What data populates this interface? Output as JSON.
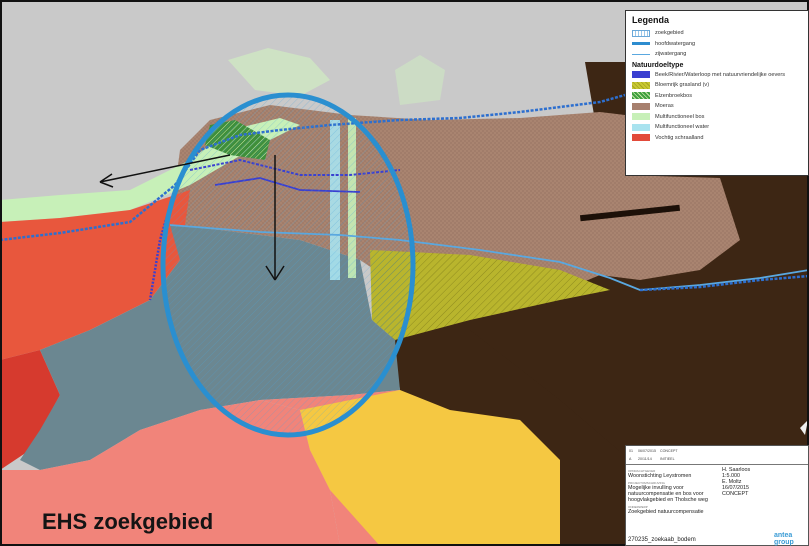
{
  "legend": {
    "title": "Legenda",
    "items": [
      {
        "label": "zoekgebied",
        "color": "#6aa8d8",
        "type": "hatched-box"
      },
      {
        "label": "hoofdwatergang",
        "color": "#2d8ccf",
        "type": "thick-line"
      },
      {
        "label": "zijwatergang",
        "color": "#5aa8e0",
        "type": "thin-line"
      }
    ],
    "section_title": "Natuurdoeltype",
    "types": [
      {
        "label": "Beek/Rivier/Waterloop met natuurvriendelijke oevers",
        "color": "#3a3fd0"
      },
      {
        "label": "Bloemrijk grasland (v)",
        "color": "#c9c932"
      },
      {
        "label": "Elzenbroekbos",
        "color": "#3e9f3e"
      },
      {
        "label": "Moeras",
        "color": "#a7806e"
      },
      {
        "label": "Multifunctioneel bos",
        "color": "#c7f0b8"
      },
      {
        "label": "Multifunctioneel water",
        "color": "#a9e3ef"
      },
      {
        "label": "Vochtig schraalland",
        "color": "#e24a3a"
      }
    ]
  },
  "title_block": {
    "rev_row": [
      "01",
      "06/07/2015",
      "CONCEPT",
      "A",
      "20/11/14",
      "INITIEEL"
    ],
    "client_label": "OPDRACHTGEVER",
    "client": "Woonstichting Leystromen",
    "subject_label": "PROJECTOMSCHRIJVING",
    "subject": "Mogelijke invulling voor natuurcompensatie en bos voor hoogvlakgebied en Tholsche weg",
    "title_label": "ONDERWERP",
    "title": "Zoekgebied natuurcompensatie",
    "scale": "1:5.000",
    "drawn_by": "H. Saarloos",
    "checked": "E. Moltz",
    "date": "16/07/2015",
    "status": "CONCEPT",
    "project_number": "270235_zoekaab_bodem",
    "company": "antea group"
  },
  "map": {
    "highlight_label": "EHS zoekgebied"
  }
}
